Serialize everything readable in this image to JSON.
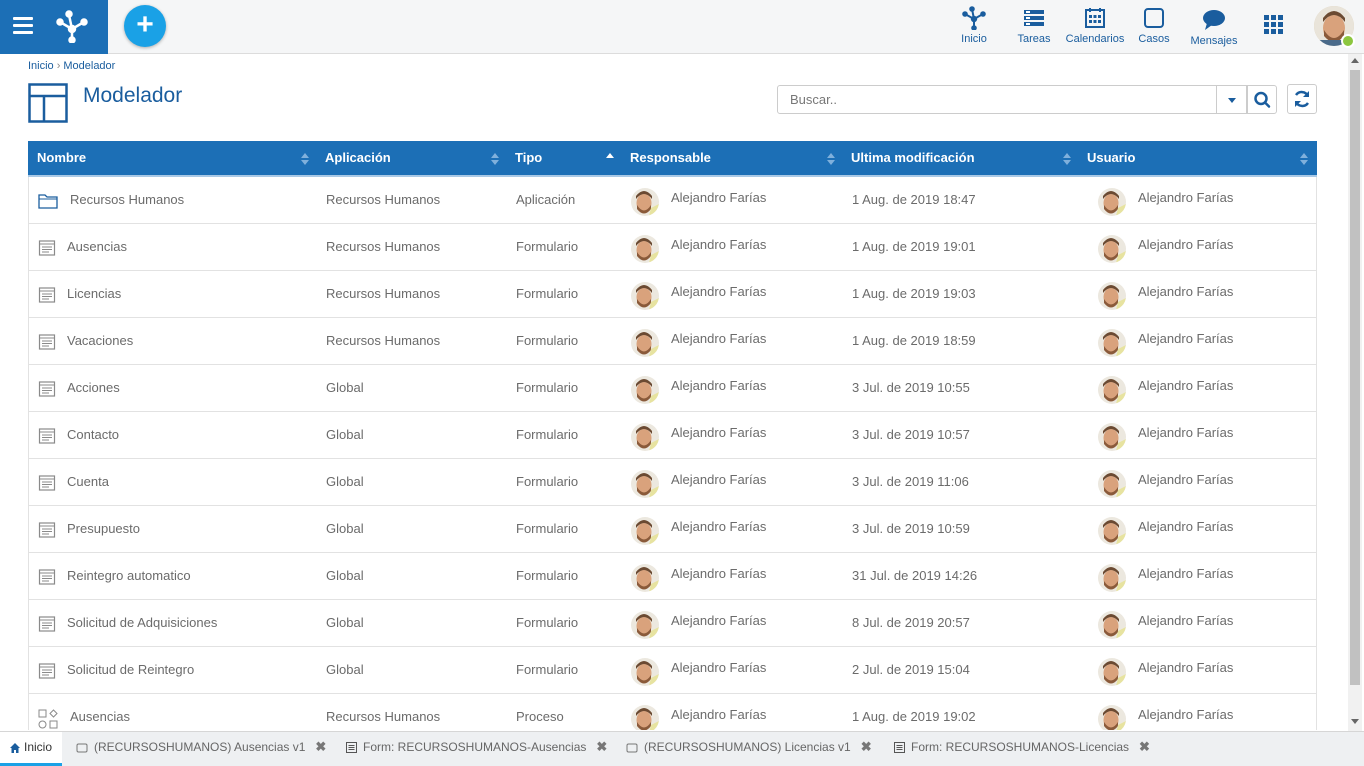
{
  "topbar": {
    "nav": [
      {
        "label": "Inicio",
        "icon": "network-icon"
      },
      {
        "label": "Tareas",
        "icon": "tasks-icon"
      },
      {
        "label": "Calendarios",
        "icon": "calendar-icon"
      },
      {
        "label": "Casos",
        "icon": "cases-icon"
      },
      {
        "label": "Mensajes",
        "icon": "messages-icon"
      }
    ],
    "add_label": "+",
    "accent": "#1c6fb6",
    "add_color": "#1aa1e6",
    "online_color": "#8cc63f"
  },
  "breadcrumb": {
    "home": "Inicio",
    "sep": "›",
    "current": "Modelador"
  },
  "page": {
    "title": "Modelador"
  },
  "search": {
    "placeholder": "Buscar.."
  },
  "table": {
    "columns": [
      "Nombre",
      "Aplicación",
      "Tipo",
      "Responsable",
      "Ultima modificación",
      "Usuario"
    ],
    "sorted_column": "Tipo",
    "rows": [
      {
        "icon": "folder-icon",
        "nombre": "Recursos Humanos",
        "aplicacion": "Recursos Humanos",
        "tipo": "Aplicación",
        "responsable": "Alejandro Farías",
        "modificacion": "1 Aug. de 2019 18:47",
        "usuario": "Alejandro Farías"
      },
      {
        "icon": "form-icon",
        "nombre": "Ausencias",
        "aplicacion": "Recursos Humanos",
        "tipo": "Formulario",
        "responsable": "Alejandro Farías",
        "modificacion": "1 Aug. de 2019 19:01",
        "usuario": "Alejandro Farías"
      },
      {
        "icon": "form-icon",
        "nombre": "Licencias",
        "aplicacion": "Recursos Humanos",
        "tipo": "Formulario",
        "responsable": "Alejandro Farías",
        "modificacion": "1 Aug. de 2019 19:03",
        "usuario": "Alejandro Farías"
      },
      {
        "icon": "form-icon",
        "nombre": "Vacaciones",
        "aplicacion": "Recursos Humanos",
        "tipo": "Formulario",
        "responsable": "Alejandro Farías",
        "modificacion": "1 Aug. de 2019 18:59",
        "usuario": "Alejandro Farías"
      },
      {
        "icon": "form-icon",
        "nombre": "Acciones",
        "aplicacion": "Global",
        "tipo": "Formulario",
        "responsable": "Alejandro Farías",
        "modificacion": "3 Jul. de 2019 10:55",
        "usuario": "Alejandro Farías"
      },
      {
        "icon": "form-icon",
        "nombre": "Contacto",
        "aplicacion": "Global",
        "tipo": "Formulario",
        "responsable": "Alejandro Farías",
        "modificacion": "3 Jul. de 2019 10:57",
        "usuario": "Alejandro Farías"
      },
      {
        "icon": "form-icon",
        "nombre": "Cuenta",
        "aplicacion": "Global",
        "tipo": "Formulario",
        "responsable": "Alejandro Farías",
        "modificacion": "3 Jul. de 2019 11:06",
        "usuario": "Alejandro Farías"
      },
      {
        "icon": "form-icon",
        "nombre": "Presupuesto",
        "aplicacion": "Global",
        "tipo": "Formulario",
        "responsable": "Alejandro Farías",
        "modificacion": "3 Jul. de 2019 10:59",
        "usuario": "Alejandro Farías"
      },
      {
        "icon": "form-icon",
        "nombre": "Reintegro automatico",
        "aplicacion": "Global",
        "tipo": "Formulario",
        "responsable": "Alejandro Farías",
        "modificacion": "31 Jul. de 2019 14:26",
        "usuario": "Alejandro Farías"
      },
      {
        "icon": "form-icon",
        "nombre": "Solicitud de Adquisiciones",
        "aplicacion": "Global",
        "tipo": "Formulario",
        "responsable": "Alejandro Farías",
        "modificacion": "8 Jul. de 2019 20:57",
        "usuario": "Alejandro Farías"
      },
      {
        "icon": "form-icon",
        "nombre": "Solicitud de Reintegro",
        "aplicacion": "Global",
        "tipo": "Formulario",
        "responsable": "Alejandro Farías",
        "modificacion": "2 Jul. de 2019 15:04",
        "usuario": "Alejandro Farías"
      },
      {
        "icon": "process-icon",
        "nombre": "Ausencias",
        "aplicacion": "Recursos Humanos",
        "tipo": "Proceso",
        "responsable": "Alejandro Farías",
        "modificacion": "1 Aug. de 2019 19:02",
        "usuario": "Alejandro Farías"
      }
    ]
  },
  "tabs": [
    {
      "label": "Inicio",
      "icon": "home-icon",
      "active": true
    },
    {
      "label": "(RECURSOSHUMANOS) Ausencias v1",
      "icon": "process-tab-icon"
    },
    {
      "label": "Form: RECURSOSHUMANOS-Ausencias",
      "icon": "form-tab-icon"
    },
    {
      "label": "(RECURSOSHUMANOS) Licencias v1",
      "icon": "process-tab-icon"
    },
    {
      "label": "Form: RECURSOSHUMANOS-Licencias",
      "icon": "form-tab-icon"
    }
  ],
  "tab_close_glyph": "✖"
}
